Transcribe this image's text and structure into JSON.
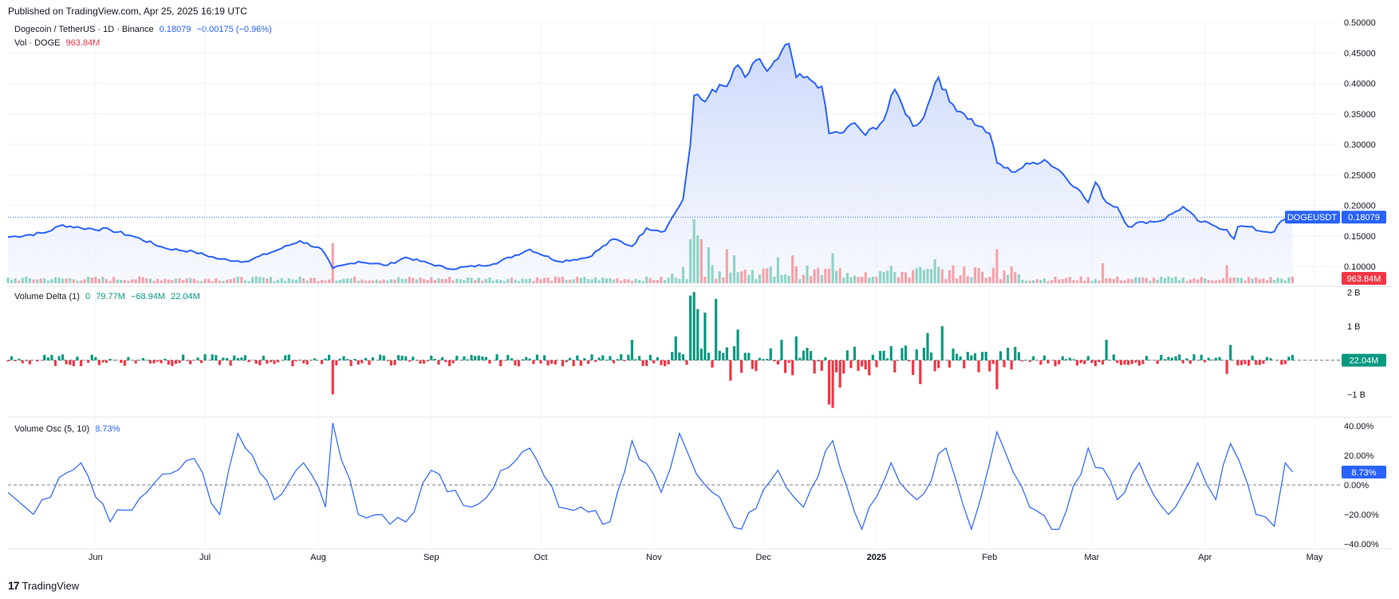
{
  "header": {
    "published": "Published on TradingView.com, Apr 25, 2025 16:19 UTC"
  },
  "footer": {
    "brand": "TradingView",
    "logo_glyph": "17"
  },
  "legend": {
    "main_title": "Dogecoin / TetherUS · 1D · Binance",
    "last": "0.18079",
    "change": "−0.00175 (−0.96%)",
    "vol_label": "Vol · DOGE",
    "vol_value": "963.84M",
    "vd_label": "Volume Delta (1)",
    "vd_v0": "0",
    "vd_v1": "79.77M",
    "vd_v2": "−68.94M",
    "vd_v3": "22.04M",
    "osc_label": "Volume Osc (5, 10)",
    "osc_value": "8.73%"
  },
  "colors": {
    "line": "#2962ff",
    "area_top": "#c9d6fb",
    "vol_up": "#8fd3c6",
    "vol_down": "#f5a3a9",
    "delta_up": "#089981",
    "delta_down": "#f23645",
    "grid": "#f0f3fa",
    "axis_text": "#131722"
  },
  "chart_data": [
    {
      "type": "line",
      "name": "main",
      "series_label": "DOGEUSDT",
      "last_value": 0.18079,
      "last_label": "0.18079",
      "ylim": [
        0.07,
        0.5
      ],
      "y_ticks": [
        "0.50000",
        "0.45000",
        "0.40000",
        "0.35000",
        "0.30000",
        "0.25000",
        "0.20000",
        "0.15000",
        "0.10000"
      ],
      "x_ticks": [
        "Jun",
        "Jul",
        "Aug",
        "Sep",
        "Oct",
        "Nov",
        "Dec",
        "2025",
        "Feb",
        "Mar",
        "Apr",
        "May"
      ],
      "x_tick_dates": [
        "2024-06-01",
        "2024-07-01",
        "2024-08-01",
        "2024-09-01",
        "2024-10-01",
        "2024-11-01",
        "2024-12-01",
        "2025-01-01",
        "2025-02-01",
        "2025-03-01",
        "2025-04-01",
        "2025-05-01"
      ],
      "x_range": [
        "2024-05-08",
        "2025-05-08"
      ],
      "keypoints": [
        [
          "2024-05-08",
          0.148
        ],
        [
          "2024-05-18",
          0.155
        ],
        [
          "2024-05-23",
          0.168
        ],
        [
          "2024-05-28",
          0.163
        ],
        [
          "2024-06-05",
          0.16
        ],
        [
          "2024-06-12",
          0.148
        ],
        [
          "2024-06-20",
          0.13
        ],
        [
          "2024-06-28",
          0.124
        ],
        [
          "2024-07-05",
          0.112
        ],
        [
          "2024-07-12",
          0.108
        ],
        [
          "2024-07-20",
          0.125
        ],
        [
          "2024-07-27",
          0.142
        ],
        [
          "2024-08-02",
          0.128
        ],
        [
          "2024-08-05",
          0.097
        ],
        [
          "2024-08-12",
          0.108
        ],
        [
          "2024-08-20",
          0.102
        ],
        [
          "2024-08-25",
          0.115
        ],
        [
          "2024-09-06",
          0.096
        ],
        [
          "2024-09-18",
          0.104
        ],
        [
          "2024-09-28",
          0.128
        ],
        [
          "2024-10-06",
          0.108
        ],
        [
          "2024-10-14",
          0.115
        ],
        [
          "2024-10-21",
          0.145
        ],
        [
          "2024-10-26",
          0.133
        ],
        [
          "2024-10-30",
          0.163
        ],
        [
          "2024-11-04",
          0.158
        ],
        [
          "2024-11-06",
          0.18
        ],
        [
          "2024-11-09",
          0.21
        ],
        [
          "2024-11-11",
          0.3
        ],
        [
          "2024-11-12",
          0.38
        ],
        [
          "2024-11-15",
          0.37
        ],
        [
          "2024-11-17",
          0.39
        ],
        [
          "2024-11-21",
          0.395
        ],
        [
          "2024-11-24",
          0.43
        ],
        [
          "2024-11-26",
          0.41
        ],
        [
          "2024-11-30",
          0.44
        ],
        [
          "2024-12-02",
          0.42
        ],
        [
          "2024-12-05",
          0.44
        ],
        [
          "2024-12-08",
          0.465
        ],
        [
          "2024-12-10",
          0.41
        ],
        [
          "2024-12-14",
          0.405
        ],
        [
          "2024-12-17",
          0.395
        ],
        [
          "2024-12-19",
          0.318
        ],
        [
          "2024-12-23",
          0.32
        ],
        [
          "2024-12-26",
          0.335
        ],
        [
          "2024-12-29",
          0.315
        ],
        [
          "2025-01-03",
          0.34
        ],
        [
          "2025-01-06",
          0.39
        ],
        [
          "2025-01-08",
          0.365
        ],
        [
          "2025-01-11",
          0.33
        ],
        [
          "2025-01-14",
          0.345
        ],
        [
          "2025-01-17",
          0.4
        ],
        [
          "2025-01-18",
          0.41
        ],
        [
          "2025-01-21",
          0.37
        ],
        [
          "2025-01-25",
          0.35
        ],
        [
          "2025-01-29",
          0.33
        ],
        [
          "2025-02-01",
          0.318
        ],
        [
          "2025-02-03",
          0.27
        ],
        [
          "2025-02-07",
          0.255
        ],
        [
          "2025-02-12",
          0.268
        ],
        [
          "2025-02-16",
          0.275
        ],
        [
          "2025-02-20",
          0.258
        ],
        [
          "2025-02-25",
          0.228
        ],
        [
          "2025-02-28",
          0.205
        ],
        [
          "2025-03-02",
          0.238
        ],
        [
          "2025-03-05",
          0.205
        ],
        [
          "2025-03-08",
          0.197
        ],
        [
          "2025-03-11",
          0.165
        ],
        [
          "2025-03-15",
          0.173
        ],
        [
          "2025-03-20",
          0.175
        ],
        [
          "2025-03-24",
          0.19
        ],
        [
          "2025-03-26",
          0.198
        ],
        [
          "2025-03-30",
          0.175
        ],
        [
          "2025-04-03",
          0.168
        ],
        [
          "2025-04-07",
          0.16
        ],
        [
          "2025-04-09",
          0.145
        ],
        [
          "2025-04-10",
          0.165
        ],
        [
          "2025-04-13",
          0.165
        ],
        [
          "2025-04-16",
          0.158
        ],
        [
          "2025-04-20",
          0.157
        ],
        [
          "2025-04-22",
          0.175
        ],
        [
          "2025-04-25",
          0.18
        ]
      ]
    },
    {
      "type": "bar",
      "name": "volume",
      "series_label": "Vol · DOGE",
      "last_label": "963.84M",
      "spikes": [
        [
          "2024-08-05",
          1.0
        ],
        [
          "2024-11-11",
          1.1
        ],
        [
          "2024-11-12",
          1.6
        ],
        [
          "2024-11-13",
          1.2
        ],
        [
          "2024-11-14",
          1.1
        ],
        [
          "2024-11-16",
          0.9
        ],
        [
          "2024-11-21",
          0.85
        ],
        [
          "2024-11-23",
          0.7
        ],
        [
          "2024-12-05",
          0.65
        ],
        [
          "2024-12-09",
          0.7
        ],
        [
          "2024-12-20",
          0.75
        ],
        [
          "2025-01-17",
          0.6
        ],
        [
          "2025-02-03",
          0.85
        ],
        [
          "2025-03-04",
          0.5
        ],
        [
          "2025-04-07",
          0.45
        ]
      ]
    },
    {
      "type": "bar",
      "name": "volume_delta",
      "series_label": "Volume Delta (1)",
      "y_ticks": [
        "2 B",
        "1 B",
        "−1 B"
      ],
      "ylim": [
        -1.6,
        2.1
      ],
      "last_label": "22.04M",
      "spikes": [
        [
          "2024-08-05",
          -1.0
        ],
        [
          "2024-10-26",
          0.6
        ],
        [
          "2024-11-07",
          0.7
        ],
        [
          "2024-11-11",
          1.9
        ],
        [
          "2024-11-12",
          2.0
        ],
        [
          "2024-11-13",
          1.5
        ],
        [
          "2024-11-15",
          1.4
        ],
        [
          "2024-11-18",
          1.8
        ],
        [
          "2024-11-22",
          -0.6
        ],
        [
          "2024-11-24",
          0.9
        ],
        [
          "2024-12-06",
          0.6
        ],
        [
          "2024-12-10",
          0.7
        ],
        [
          "2024-12-19",
          -1.3
        ],
        [
          "2024-12-20",
          -1.4
        ],
        [
          "2024-12-22",
          -0.8
        ],
        [
          "2025-01-13",
          -0.7
        ],
        [
          "2025-01-15",
          0.8
        ],
        [
          "2025-01-19",
          1.0
        ],
        [
          "2025-02-03",
          -0.85
        ],
        [
          "2025-03-05",
          0.6
        ],
        [
          "2025-04-07",
          -0.4
        ],
        [
          "2025-04-08",
          0.45
        ]
      ]
    },
    {
      "type": "line",
      "name": "volume_osc",
      "series_label": "Volume Osc (5, 10)",
      "y_ticks": [
        "40.00%",
        "20.00%",
        "0.00%",
        "−20.00%",
        "−40.00%"
      ],
      "ylim": [
        -40,
        40
      ],
      "last_label": "8.73%",
      "peaks": [
        [
          "2024-05-15",
          -20
        ],
        [
          "2024-05-22",
          5
        ],
        [
          "2024-05-28",
          15
        ],
        [
          "2024-06-05",
          -25
        ],
        [
          "2024-06-15",
          -5
        ],
        [
          "2024-06-28",
          18
        ],
        [
          "2024-07-05",
          -20
        ],
        [
          "2024-07-10",
          35
        ],
        [
          "2024-07-20",
          -10
        ],
        [
          "2024-07-28",
          15
        ],
        [
          "2024-08-03",
          -15
        ],
        [
          "2024-08-05",
          42
        ],
        [
          "2024-08-12",
          -20
        ],
        [
          "2024-08-25",
          -25
        ],
        [
          "2024-09-01",
          10
        ],
        [
          "2024-09-12",
          -15
        ],
        [
          "2024-09-28",
          25
        ],
        [
          "2024-10-06",
          -15
        ],
        [
          "2024-10-20",
          -25
        ],
        [
          "2024-10-26",
          30
        ],
        [
          "2024-11-03",
          -5
        ],
        [
          "2024-11-08",
          35
        ],
        [
          "2024-11-15",
          0
        ],
        [
          "2024-11-25",
          -30
        ],
        [
          "2024-12-05",
          10
        ],
        [
          "2024-12-12",
          -15
        ],
        [
          "2024-12-20",
          30
        ],
        [
          "2024-12-28",
          -30
        ],
        [
          "2025-01-05",
          15
        ],
        [
          "2025-01-12",
          -10
        ],
        [
          "2025-01-20",
          25
        ],
        [
          "2025-01-27",
          -30
        ],
        [
          "2025-02-03",
          36
        ],
        [
          "2025-02-12",
          -15
        ],
        [
          "2025-02-20",
          -30
        ],
        [
          "2025-02-28",
          25
        ],
        [
          "2025-03-08",
          -10
        ],
        [
          "2025-03-14",
          15
        ],
        [
          "2025-03-22",
          -20
        ],
        [
          "2025-03-30",
          15
        ],
        [
          "2025-04-04",
          -10
        ],
        [
          "2025-04-08",
          28
        ],
        [
          "2025-04-15",
          -20
        ],
        [
          "2025-04-20",
          -28
        ],
        [
          "2025-04-23",
          15
        ],
        [
          "2025-04-25",
          8.73
        ]
      ]
    }
  ]
}
